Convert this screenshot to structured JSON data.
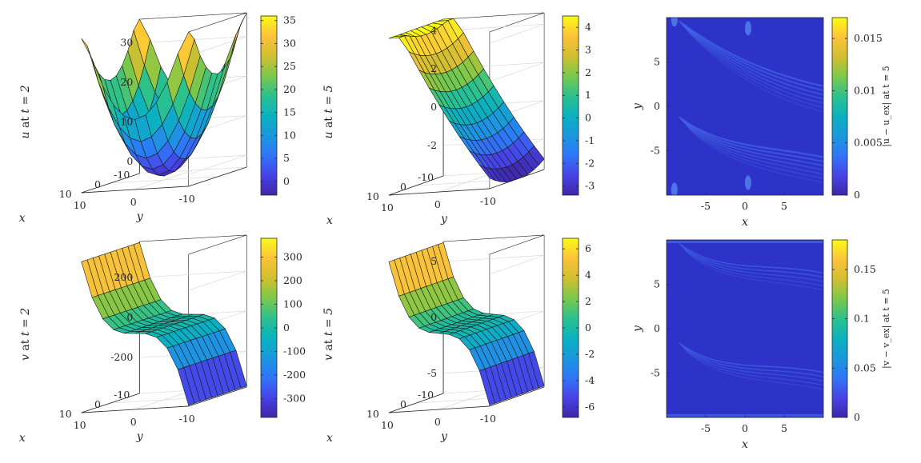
{
  "colormap": [
    "#3e26a8",
    "#4743e6",
    "#2f76f8",
    "#1a98dd",
    "#0ab2bf",
    "#2cc18d",
    "#7cc84a",
    "#d2bf2f",
    "#fcc33a",
    "#f9fb15"
  ],
  "error_background": "#2d33c8",
  "error_streak": "#4a73f0",
  "chart_data": [
    {
      "id": "u2",
      "type": "surface3d",
      "function": "u = x^2/6 + y^2/4 - 2",
      "title": "",
      "zlabel_var": "u",
      "zlabel_mid": "at",
      "zlabel_t": "t = 2",
      "xlabel": "x",
      "ylabel": "y",
      "xticks": [
        "10",
        "0",
        "-10"
      ],
      "yticks": [
        "10",
        "0",
        "-10"
      ],
      "zticks": [
        0,
        10,
        20,
        30
      ],
      "zlim": [
        -3,
        36
      ],
      "clim": [
        -3,
        36
      ],
      "cbar_ticks": [
        35,
        30,
        25,
        20,
        15,
        10,
        5,
        0
      ]
    },
    {
      "id": "u5",
      "type": "surface3d",
      "function": "u = 0.45*y + 0.006*x^2 + 0.005*y^2 + 0.35",
      "zlabel_var": "u",
      "zlabel_mid": "at",
      "zlabel_t": "t = 5",
      "xlabel": "x",
      "ylabel": "y",
      "xticks": [
        "10",
        "0",
        "-10"
      ],
      "yticks": [
        "10",
        "0",
        "-10"
      ],
      "zticks": [
        -2,
        0,
        2,
        4
      ],
      "zlim": [
        -3.6,
        4.6
      ],
      "clim": [
        -3.4,
        4.5
      ],
      "cbar_ticks": [
        4,
        3,
        2,
        1,
        0,
        -1,
        -2,
        -3
      ]
    },
    {
      "id": "errU",
      "type": "heatmap",
      "xlabel": "x",
      "ylabel": "y",
      "xticks": [
        "-5",
        "0",
        "5"
      ],
      "yticks": [
        "5",
        "0",
        "-5"
      ],
      "xlim": [
        -10,
        10
      ],
      "ylim": [
        -10,
        10
      ],
      "cbar_label": "|u − u_ex| at t = 5",
      "clim": [
        0,
        0.017
      ],
      "cbar_ticks": [
        "0.015",
        "0.01",
        "0.005",
        "0"
      ],
      "cbar_values": [
        0.015,
        0.01,
        0.005,
        0
      ]
    },
    {
      "id": "v2",
      "type": "surface3d",
      "function": "v = 0.37*y^3 + 0.5*y",
      "zlabel_var": "v",
      "zlabel_mid": "at",
      "zlabel_t": "t = 2",
      "xlabel": "x",
      "ylabel": "y",
      "xticks": [
        "10",
        "0",
        "-10"
      ],
      "yticks": [
        "10",
        "0",
        "-10"
      ],
      "zticks": [
        -200,
        0,
        200
      ],
      "zlim": [
        -380,
        380
      ],
      "clim": [
        -380,
        380
      ],
      "cbar_ticks": [
        300,
        200,
        100,
        0,
        -100,
        -200,
        -300
      ]
    },
    {
      "id": "v5",
      "type": "surface3d",
      "function": "v = 0.0062*y^3 + 0.05*y",
      "zlabel_var": "v",
      "zlabel_mid": "at",
      "zlabel_t": "t = 5",
      "xlabel": "x",
      "ylabel": "y",
      "xticks": [
        "10",
        "0",
        "-10"
      ],
      "yticks": [
        "10",
        "0",
        "-10"
      ],
      "zticks": [
        -5,
        0,
        5
      ],
      "zlim": [
        -6.8,
        6.8
      ],
      "clim": [
        -6.8,
        6.8
      ],
      "cbar_ticks": [
        6,
        4,
        2,
        0,
        -2,
        -4,
        -6
      ]
    },
    {
      "id": "errV",
      "type": "heatmap",
      "xlabel": "x",
      "ylabel": "y",
      "xticks": [
        "-5",
        "0",
        "5"
      ],
      "yticks": [
        "5",
        "0",
        "-5"
      ],
      "xlim": [
        -10,
        10
      ],
      "ylim": [
        -10,
        10
      ],
      "cbar_label": "|v − v_ex| at t = 5",
      "clim": [
        0,
        0.18
      ],
      "cbar_ticks": [
        "0.15",
        "0.1",
        "0.05",
        "0"
      ],
      "cbar_values": [
        0.15,
        0.1,
        0.05,
        0
      ]
    }
  ]
}
